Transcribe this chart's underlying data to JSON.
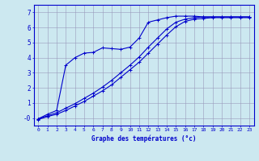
{
  "xlabel": "Graphe des températures (°c)",
  "xlim": [
    -0.5,
    23.5
  ],
  "ylim": [
    -0.5,
    7.5
  ],
  "xticks": [
    0,
    1,
    2,
    3,
    4,
    5,
    6,
    7,
    8,
    9,
    10,
    11,
    12,
    13,
    14,
    15,
    16,
    17,
    18,
    19,
    20,
    21,
    22,
    23
  ],
  "yticks": [
    0,
    1,
    2,
    3,
    4,
    5,
    6,
    7
  ],
  "ytick_labels": [
    "-0",
    "1",
    "2",
    "3",
    "4",
    "5",
    "6",
    "7"
  ],
  "background_color": "#cce8f0",
  "grid_color": "#9999bb",
  "line_color": "#0000cc",
  "curve_main_x": [
    0,
    1,
    2,
    3,
    4,
    5,
    6,
    7,
    8,
    9,
    10,
    11,
    12,
    13,
    14,
    15,
    16,
    17,
    18,
    19,
    20,
    21,
    22,
    23
  ],
  "curve_main_y": [
    -0.05,
    0.25,
    0.5,
    3.5,
    4.0,
    4.3,
    4.35,
    4.65,
    4.6,
    4.55,
    4.7,
    5.3,
    6.35,
    6.5,
    6.65,
    6.75,
    6.75,
    6.75,
    6.7,
    6.7,
    6.7,
    6.7,
    6.7,
    6.7
  ],
  "curve_line1_x": [
    0,
    1,
    2,
    3,
    4,
    5,
    6,
    7,
    8,
    9,
    10,
    11,
    12,
    13,
    14,
    15,
    16,
    17,
    18,
    19,
    20,
    21,
    22,
    23
  ],
  "curve_line1_y": [
    -0.1,
    0.1,
    0.25,
    0.5,
    0.8,
    1.1,
    1.45,
    1.8,
    2.2,
    2.7,
    3.2,
    3.7,
    4.3,
    4.9,
    5.5,
    6.05,
    6.4,
    6.55,
    6.6,
    6.65,
    6.65,
    6.65,
    6.65,
    6.65
  ],
  "curve_line2_x": [
    0,
    1,
    2,
    3,
    4,
    5,
    6,
    7,
    8,
    9,
    10,
    11,
    12,
    13,
    14,
    15,
    16,
    17,
    18,
    19,
    20,
    21,
    22,
    23
  ],
  "curve_line2_y": [
    -0.05,
    0.15,
    0.35,
    0.65,
    0.95,
    1.3,
    1.65,
    2.05,
    2.5,
    3.0,
    3.5,
    4.05,
    4.7,
    5.3,
    5.9,
    6.35,
    6.55,
    6.65,
    6.7,
    6.7,
    6.7,
    6.7,
    6.7,
    6.7
  ]
}
